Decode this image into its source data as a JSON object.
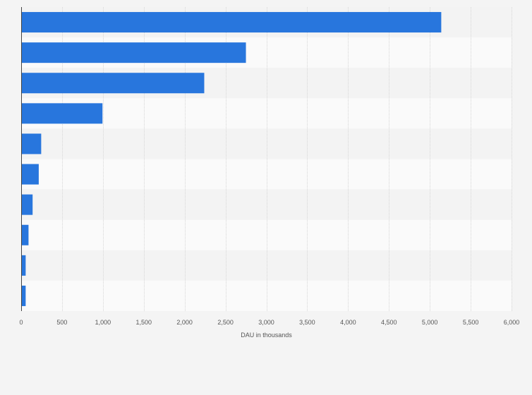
{
  "chart_data": {
    "type": "bar",
    "orientation": "horizontal",
    "categories": [
      "",
      "",
      "",
      "",
      "",
      "",
      "",
      "",
      "",
      ""
    ],
    "series": [
      {
        "values": [
          5140,
          2750,
          2240,
          995,
          245,
          215,
          140,
          90,
          55,
          55
        ]
      }
    ],
    "xlabel": "DAU in thousands",
    "ylabel": "",
    "xlim": [
      0,
      6000
    ],
    "x_ticks": [
      0,
      500,
      1000,
      1500,
      2000,
      2500,
      3000,
      3500,
      4000,
      4500,
      5000,
      5500,
      6000
    ],
    "x_tick_labels": [
      "0",
      "500",
      "1,000",
      "1,500",
      "2,000",
      "2,500",
      "3,000",
      "3,500",
      "4,000",
      "4,500",
      "5,000",
      "5,500",
      "6,000"
    ],
    "grid": "vertical",
    "legend": "none",
    "colors": {
      "bar": "#2876dd",
      "band_light": "#fafafa",
      "band_dark": "#f3f3f3",
      "grid": "#d6d6d6",
      "axis": "#444444",
      "background": "#f4f4f4"
    }
  }
}
